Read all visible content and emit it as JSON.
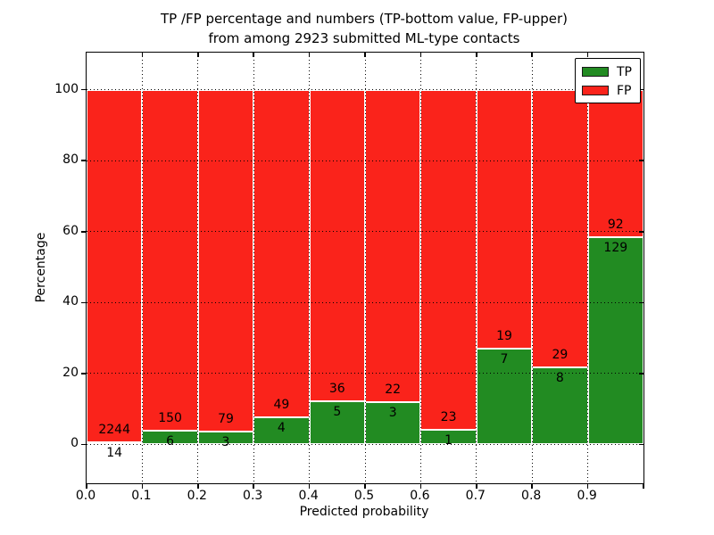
{
  "title": {
    "line1": "TP /FP percentage and numbers (TP-bottom value, FP-upper)",
    "line2": "from among 2923 submitted ML-type contacts"
  },
  "chart_data": {
    "type": "bar",
    "stacked": true,
    "normalized": "each bin scaled to 100%",
    "title": "TP /FP percentage and numbers (TP-bottom value, FP-upper) from among 2923 submitted ML-type contacts",
    "xlabel": "Predicted probability",
    "ylabel": "Percentage",
    "total_contacts": 2923,
    "bin_starts": [
      0.0,
      0.1,
      0.2,
      0.3,
      0.4,
      0.5,
      0.6,
      0.7,
      0.8,
      0.9
    ],
    "bin_width": 0.1,
    "series": [
      {
        "name": "TP",
        "color": "#228b22",
        "counts": [
          14,
          6,
          3,
          4,
          5,
          3,
          1,
          7,
          8,
          129
        ]
      },
      {
        "name": "FP",
        "color": "#fa231b",
        "counts": [
          2244,
          150,
          79,
          49,
          36,
          22,
          23,
          19,
          29,
          92
        ]
      }
    ],
    "tp_percent_of_bin": [
      0.62,
      3.85,
      3.66,
      7.55,
      12.2,
      12.0,
      4.17,
      26.92,
      21.62,
      58.37
    ],
    "x_tick_labels": [
      "0.0",
      "0.1",
      "0.2",
      "0.3",
      "0.4",
      "0.5",
      "0.6",
      "0.7",
      "0.8",
      "0.9"
    ],
    "y_ticks": [
      0,
      20,
      40,
      60,
      80,
      100
    ],
    "xlim": [
      0.0,
      1.0
    ],
    "ylim": [
      -11,
      110.5
    ],
    "grid": {
      "style": "dotted",
      "color": "#000000",
      "on": true
    },
    "bar_edge_color": "#ffffff",
    "legend": {
      "position": "upper right",
      "entries": [
        {
          "label": "TP",
          "color": "#228b22"
        },
        {
          "label": "FP",
          "color": "#fa231b"
        }
      ]
    }
  }
}
